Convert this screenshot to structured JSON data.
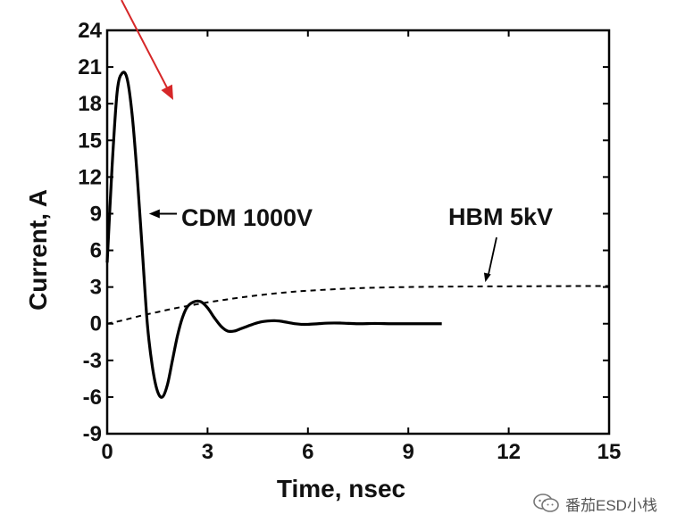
{
  "chart_data": {
    "type": "line",
    "title": "",
    "xlabel": "Time, nsec",
    "ylabel": "Current, A",
    "xlim": [
      0,
      15
    ],
    "ylim": [
      -9,
      24
    ],
    "xticks": [
      0,
      3,
      6,
      9,
      12,
      15
    ],
    "yticks": [
      -9,
      -6,
      -3,
      0,
      3,
      6,
      9,
      12,
      15,
      18,
      21,
      24
    ],
    "xtick_labels": [
      "0",
      "3",
      "6",
      "9",
      "12",
      "15"
    ],
    "ytick_labels": [
      "-9",
      "-6",
      "-3",
      "0",
      "3",
      "6",
      "9",
      "12",
      "15",
      "18",
      "21",
      "24"
    ],
    "grid": false,
    "series": [
      {
        "name": "CDM 1000V",
        "style": "solid",
        "color": "#000000",
        "x": [
          0,
          0.15,
          0.3,
          0.45,
          0.6,
          0.75,
          0.9,
          1.05,
          1.2,
          1.35,
          1.5,
          1.65,
          1.8,
          1.95,
          2.1,
          2.25,
          2.4,
          2.6,
          2.8,
          3.0,
          3.2,
          3.4,
          3.6,
          3.8,
          4.0,
          4.2,
          4.4,
          4.6,
          4.8,
          5.0,
          5.2,
          5.4,
          5.6,
          5.8,
          6.0,
          6.3,
          6.6,
          7.0,
          7.5,
          8.0,
          8.5,
          9.0,
          9.5,
          10.0
        ],
        "y": [
          5,
          13,
          19,
          20.5,
          20,
          17,
          12,
          6,
          0,
          -3.5,
          -5.5,
          -6,
          -5,
          -3,
          -1,
          0.5,
          1.4,
          1.8,
          1.8,
          1.3,
          0.5,
          -0.2,
          -0.6,
          -0.6,
          -0.4,
          -0.2,
          0,
          0.15,
          0.22,
          0.25,
          0.2,
          0.1,
          0,
          -0.05,
          -0.05,
          0,
          0.05,
          0.05,
          0,
          0.02,
          0,
          0,
          0,
          0
        ]
      },
      {
        "name": "HBM 5kV",
        "style": "dashed",
        "color": "#000000",
        "x": [
          0,
          0.5,
          1,
          1.5,
          2,
          2.5,
          3,
          3.5,
          4,
          4.5,
          5,
          5.5,
          6,
          7,
          8,
          9,
          10,
          11,
          12,
          13,
          14,
          15
        ],
        "y": [
          0,
          0.3,
          0.65,
          0.95,
          1.25,
          1.5,
          1.75,
          1.95,
          2.15,
          2.32,
          2.47,
          2.6,
          2.7,
          2.85,
          2.95,
          3.0,
          3.03,
          3.05,
          3.06,
          3.07,
          3.08,
          3.08
        ]
      }
    ],
    "annotations": [
      {
        "text": "CDM 1000V",
        "arrow_to": [
          1.25,
          9
        ]
      },
      {
        "text": "HBM 5kV",
        "arrow_to": [
          11.3,
          3.4
        ]
      }
    ]
  },
  "watermark": {
    "text": "番茄ESD小栈",
    "icon": "wechat-icon"
  },
  "colors": {
    "axes": "#000000",
    "overlay_arrow": "#d62728"
  }
}
